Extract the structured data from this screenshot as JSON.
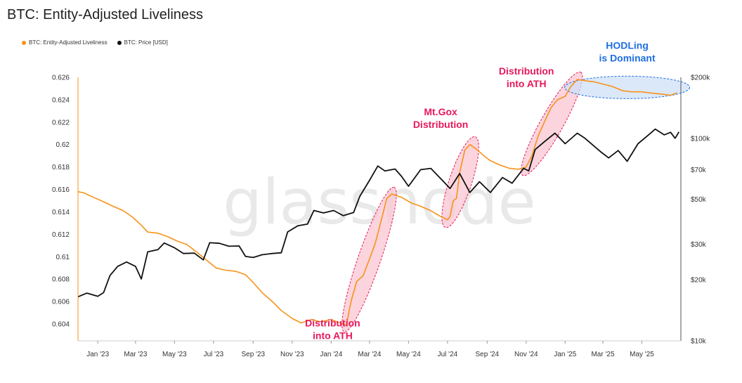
{
  "title": "BTC: Entity-Adjusted Liveliness",
  "watermark": "glassnode",
  "colors": {
    "liveliness": "#f7931a",
    "price": "#111111",
    "distribution_text": "#e8185a",
    "distribution_fill": "#f9c6d2",
    "distribution_stroke": "#e8185a",
    "hodl_text": "#1f6fe0",
    "hodl_fill": "#cfe0f7",
    "hodl_stroke": "#1f6fe0"
  },
  "legend": [
    {
      "label": "BTC: Entity-Adjusted Liveliness",
      "color": "#f7931a"
    },
    {
      "label": "BTC: Price [USD]",
      "color": "#111111"
    }
  ],
  "chart_data": {
    "type": "line",
    "title": "BTC: Entity-Adjusted Liveliness",
    "x_start": "2022-12-01",
    "x_end": "2025-07-01",
    "x_ticks": [
      "Jan '23",
      "Mar '23",
      "May '23",
      "Jul '23",
      "Sep '23",
      "Nov '23",
      "Jan '24",
      "Mar '24",
      "May '24",
      "Jul '24",
      "Sep '24",
      "Nov '24",
      "Jan '25",
      "Mar '25",
      "May '25"
    ],
    "x_tick_dates": [
      "2023-01-01",
      "2023-03-01",
      "2023-05-01",
      "2023-07-01",
      "2023-09-01",
      "2023-11-01",
      "2024-01-01",
      "2024-03-01",
      "2024-05-01",
      "2024-07-01",
      "2024-09-01",
      "2024-11-01",
      "2025-01-01",
      "2025-03-01",
      "2025-05-01"
    ],
    "y_left": {
      "ylim": [
        0.6025,
        0.626
      ],
      "ticks": [
        0.604,
        0.606,
        0.608,
        0.61,
        0.612,
        0.614,
        0.616,
        0.618,
        0.62,
        0.622,
        0.624,
        0.626
      ],
      "tick_labels": [
        "0.604",
        "0.606",
        "0.608",
        "0.61",
        "0.612",
        "0.614",
        "0.616",
        "0.618",
        "0.62",
        "0.622",
        "0.624",
        "0.626"
      ]
    },
    "y_right": {
      "scale": "log",
      "ylim": [
        10000,
        200000
      ],
      "ticks": [
        10000,
        20000,
        30000,
        50000,
        70000,
        100000,
        200000
      ],
      "tick_labels": [
        "$10k",
        "$20k",
        "$30k",
        "$50k",
        "$70k",
        "$100k",
        "$200k"
      ]
    },
    "series": [
      {
        "name": "BTC: Entity-Adjusted Liveliness",
        "axis": "left",
        "color": "#f7931a",
        "points": [
          [
            "2022-12-01",
            0.6158
          ],
          [
            "2022-12-10",
            0.6157
          ],
          [
            "2022-12-25",
            0.6153
          ],
          [
            "2023-01-10",
            0.6149
          ],
          [
            "2023-01-25",
            0.6145
          ],
          [
            "2023-02-10",
            0.6141
          ],
          [
            "2023-02-25",
            0.6135
          ],
          [
            "2023-03-10",
            0.6128
          ],
          [
            "2023-03-20",
            0.6122
          ],
          [
            "2023-04-05",
            0.6121
          ],
          [
            "2023-04-20",
            0.6118
          ],
          [
            "2023-05-05",
            0.6114
          ],
          [
            "2023-05-20",
            0.6111
          ],
          [
            "2023-06-05",
            0.6104
          ],
          [
            "2023-06-20",
            0.6097
          ],
          [
            "2023-07-05",
            0.609
          ],
          [
            "2023-07-20",
            0.6088
          ],
          [
            "2023-08-05",
            0.6087
          ],
          [
            "2023-08-20",
            0.6084
          ],
          [
            "2023-09-01",
            0.6077
          ],
          [
            "2023-09-15",
            0.6068
          ],
          [
            "2023-10-01",
            0.606
          ],
          [
            "2023-10-15",
            0.6052
          ],
          [
            "2023-11-01",
            0.6045
          ],
          [
            "2023-11-15",
            0.6041
          ],
          [
            "2023-12-01",
            0.6044
          ],
          [
            "2023-12-15",
            0.6042
          ],
          [
            "2024-01-01",
            0.6044
          ],
          [
            "2024-01-20",
            0.604
          ],
          [
            "2024-01-25",
            0.6039
          ],
          [
            "2024-02-01",
            0.606
          ],
          [
            "2024-02-10",
            0.6078
          ],
          [
            "2024-02-20",
            0.6083
          ],
          [
            "2024-03-01",
            0.6098
          ],
          [
            "2024-03-10",
            0.6112
          ],
          [
            "2024-03-20",
            0.6134
          ],
          [
            "2024-03-28",
            0.6152
          ],
          [
            "2024-04-05",
            0.6156
          ],
          [
            "2024-04-20",
            0.6153
          ],
          [
            "2024-05-05",
            0.6148
          ],
          [
            "2024-05-20",
            0.6145
          ],
          [
            "2024-06-05",
            0.6141
          ],
          [
            "2024-06-20",
            0.6136
          ],
          [
            "2024-07-01",
            0.6133
          ],
          [
            "2024-07-05",
            0.6136
          ],
          [
            "2024-07-10",
            0.615
          ],
          [
            "2024-07-15",
            0.6152
          ],
          [
            "2024-07-20",
            0.6175
          ],
          [
            "2024-07-28",
            0.6195
          ],
          [
            "2024-08-05",
            0.62
          ],
          [
            "2024-08-15",
            0.6196
          ],
          [
            "2024-08-25",
            0.6191
          ],
          [
            "2024-09-05",
            0.6186
          ],
          [
            "2024-09-20",
            0.6182
          ],
          [
            "2024-10-05",
            0.6179
          ],
          [
            "2024-10-20",
            0.6178
          ],
          [
            "2024-11-01",
            0.618
          ],
          [
            "2024-11-10",
            0.619
          ],
          [
            "2024-11-20",
            0.6208
          ],
          [
            "2024-12-01",
            0.6222
          ],
          [
            "2024-12-10",
            0.6233
          ],
          [
            "2024-12-20",
            0.624
          ],
          [
            "2025-01-01",
            0.6243
          ],
          [
            "2025-01-10",
            0.6252
          ],
          [
            "2025-01-20",
            0.6258
          ],
          [
            "2025-02-01",
            0.6257
          ],
          [
            "2025-02-15",
            0.6256
          ],
          [
            "2025-03-01",
            0.6254
          ],
          [
            "2025-03-15",
            0.6252
          ],
          [
            "2025-04-01",
            0.6248
          ],
          [
            "2025-04-15",
            0.6247
          ],
          [
            "2025-05-01",
            0.6247
          ],
          [
            "2025-05-15",
            0.6246
          ],
          [
            "2025-06-01",
            0.6245
          ],
          [
            "2025-06-15",
            0.6244
          ],
          [
            "2025-06-25",
            0.6246
          ]
        ]
      },
      {
        "name": "BTC: Price [USD]",
        "axis": "right",
        "color": "#111111",
        "points": [
          [
            "2022-12-01",
            16500
          ],
          [
            "2022-12-15",
            17200
          ],
          [
            "2023-01-01",
            16600
          ],
          [
            "2023-01-10",
            17300
          ],
          [
            "2023-01-20",
            21000
          ],
          [
            "2023-02-01",
            23300
          ],
          [
            "2023-02-15",
            24500
          ],
          [
            "2023-03-01",
            23300
          ],
          [
            "2023-03-10",
            20200
          ],
          [
            "2023-03-20",
            27500
          ],
          [
            "2023-04-05",
            28200
          ],
          [
            "2023-04-15",
            30400
          ],
          [
            "2023-05-01",
            28800
          ],
          [
            "2023-05-15",
            27000
          ],
          [
            "2023-06-01",
            27100
          ],
          [
            "2023-06-15",
            25100
          ],
          [
            "2023-06-25",
            30500
          ],
          [
            "2023-07-10",
            30300
          ],
          [
            "2023-07-25",
            29300
          ],
          [
            "2023-08-10",
            29400
          ],
          [
            "2023-08-20",
            26100
          ],
          [
            "2023-09-01",
            25800
          ],
          [
            "2023-09-15",
            26600
          ],
          [
            "2023-10-01",
            27000
          ],
          [
            "2023-10-15",
            27200
          ],
          [
            "2023-10-25",
            34500
          ],
          [
            "2023-11-10",
            37000
          ],
          [
            "2023-11-25",
            37700
          ],
          [
            "2023-12-05",
            44000
          ],
          [
            "2023-12-20",
            42800
          ],
          [
            "2024-01-05",
            44000
          ],
          [
            "2024-01-20",
            41500
          ],
          [
            "2024-02-05",
            43000
          ],
          [
            "2024-02-15",
            51800
          ],
          [
            "2024-03-01",
            62000
          ],
          [
            "2024-03-14",
            73000
          ],
          [
            "2024-03-25",
            69000
          ],
          [
            "2024-04-10",
            70500
          ],
          [
            "2024-04-20",
            64900
          ],
          [
            "2024-05-01",
            58000
          ],
          [
            "2024-05-20",
            70000
          ],
          [
            "2024-06-05",
            71000
          ],
          [
            "2024-06-25",
            61000
          ],
          [
            "2024-07-05",
            56500
          ],
          [
            "2024-07-20",
            67000
          ],
          [
            "2024-08-05",
            54000
          ],
          [
            "2024-08-20",
            61000
          ],
          [
            "2024-09-06",
            54000
          ],
          [
            "2024-09-25",
            64000
          ],
          [
            "2024-10-10",
            60000
          ],
          [
            "2024-10-28",
            71000
          ],
          [
            "2024-11-05",
            69000
          ],
          [
            "2024-11-15",
            88000
          ],
          [
            "2024-12-01",
            97000
          ],
          [
            "2024-12-16",
            106000
          ],
          [
            "2025-01-01",
            94000
          ],
          [
            "2025-01-20",
            106000
          ],
          [
            "2025-02-01",
            100000
          ],
          [
            "2025-02-25",
            86000
          ],
          [
            "2025-03-10",
            80000
          ],
          [
            "2025-03-25",
            87000
          ],
          [
            "2025-04-08",
            77000
          ],
          [
            "2025-04-25",
            94000
          ],
          [
            "2025-05-10",
            103000
          ],
          [
            "2025-05-22",
            111000
          ],
          [
            "2025-06-05",
            104000
          ],
          [
            "2025-06-15",
            107000
          ],
          [
            "2025-06-22",
            100000
          ],
          [
            "2025-06-28",
            107500
          ]
        ]
      }
    ],
    "annotations": [
      {
        "lines": [
          "Distribution",
          "into ATH"
        ],
        "style": "distribution",
        "start": [
          "2024-01-25",
          0.6039
        ],
        "end": [
          "2024-04-05",
          0.6156
        ]
      },
      {
        "lines": [
          "Mt.Gox",
          "Distribution"
        ],
        "style": "distribution",
        "start": [
          "2024-07-01",
          0.6132
        ],
        "end": [
          "2024-08-10",
          0.6201
        ]
      },
      {
        "lines": [
          "Distribution",
          "into ATH"
        ],
        "style": "distribution",
        "start": [
          "2024-11-01",
          0.6178
        ],
        "end": [
          "2025-01-20",
          0.6259
        ]
      },
      {
        "lines": [
          "HODLing",
          "is Dominant"
        ],
        "style": "hodl",
        "start": [
          "2025-01-20",
          0.6251
        ],
        "end": [
          "2025-06-25",
          0.6251
        ]
      }
    ]
  }
}
